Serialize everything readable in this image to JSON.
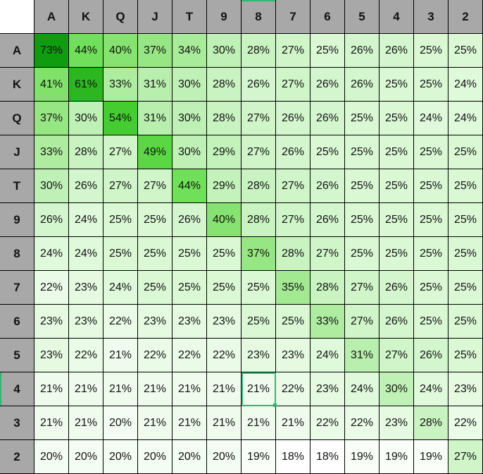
{
  "columns": [
    "A",
    "K",
    "Q",
    "J",
    "T",
    "9",
    "8",
    "7",
    "6",
    "5",
    "4",
    "3",
    "2"
  ],
  "rows": [
    {
      "label": "A",
      "values": [
        "73%",
        "44%",
        "40%",
        "37%",
        "34%",
        "30%",
        "28%",
        "27%",
        "25%",
        "26%",
        "26%",
        "25%",
        "25%"
      ]
    },
    {
      "label": "K",
      "values": [
        "41%",
        "61%",
        "33%",
        "31%",
        "30%",
        "28%",
        "26%",
        "27%",
        "26%",
        "26%",
        "25%",
        "25%",
        "24%"
      ]
    },
    {
      "label": "Q",
      "values": [
        "37%",
        "30%",
        "54%",
        "31%",
        "30%",
        "28%",
        "27%",
        "26%",
        "26%",
        "25%",
        "25%",
        "24%",
        "24%"
      ]
    },
    {
      "label": "J",
      "values": [
        "33%",
        "28%",
        "27%",
        "49%",
        "30%",
        "29%",
        "27%",
        "26%",
        "25%",
        "25%",
        "25%",
        "25%",
        "25%"
      ]
    },
    {
      "label": "T",
      "values": [
        "30%",
        "26%",
        "27%",
        "27%",
        "44%",
        "29%",
        "28%",
        "27%",
        "26%",
        "25%",
        "25%",
        "25%",
        "25%"
      ]
    },
    {
      "label": "9",
      "values": [
        "26%",
        "24%",
        "25%",
        "25%",
        "26%",
        "40%",
        "28%",
        "27%",
        "26%",
        "25%",
        "25%",
        "25%",
        "25%"
      ]
    },
    {
      "label": "8",
      "values": [
        "24%",
        "24%",
        "25%",
        "25%",
        "25%",
        "25%",
        "37%",
        "28%",
        "27%",
        "25%",
        "25%",
        "25%",
        "25%"
      ]
    },
    {
      "label": "7",
      "values": [
        "22%",
        "23%",
        "24%",
        "25%",
        "25%",
        "25%",
        "25%",
        "35%",
        "28%",
        "27%",
        "26%",
        "25%",
        "25%"
      ]
    },
    {
      "label": "6",
      "values": [
        "23%",
        "23%",
        "22%",
        "23%",
        "23%",
        "23%",
        "25%",
        "25%",
        "33%",
        "27%",
        "26%",
        "25%",
        "25%"
      ]
    },
    {
      "label": "5",
      "values": [
        "23%",
        "22%",
        "21%",
        "22%",
        "22%",
        "22%",
        "23%",
        "23%",
        "24%",
        "31%",
        "27%",
        "26%",
        "25%"
      ]
    },
    {
      "label": "4",
      "values": [
        "21%",
        "21%",
        "21%",
        "21%",
        "21%",
        "21%",
        "21%",
        "22%",
        "23%",
        "24%",
        "30%",
        "24%",
        "23%"
      ]
    },
    {
      "label": "3",
      "values": [
        "21%",
        "21%",
        "20%",
        "21%",
        "21%",
        "21%",
        "21%",
        "21%",
        "22%",
        "22%",
        "23%",
        "28%",
        "22%"
      ]
    },
    {
      "label": "2",
      "values": [
        "20%",
        "20%",
        "20%",
        "20%",
        "20%",
        "20%",
        "19%",
        "18%",
        "18%",
        "19%",
        "19%",
        "19%",
        "27%"
      ]
    }
  ],
  "selected_cell": {
    "row": 10,
    "col": 6
  },
  "colors": {
    "header_bg": "#a8a8a8",
    "selection": "#2fb872",
    "scale_low": "#ffffff",
    "scale_high": "#0f9c0f"
  }
}
